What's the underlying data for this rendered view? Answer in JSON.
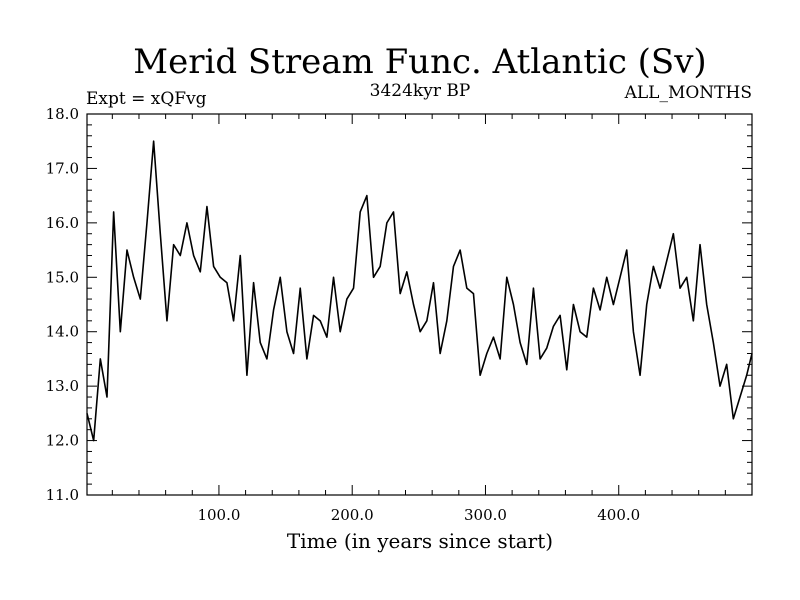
{
  "chart_data": {
    "type": "line",
    "title": "Merid Stream Func. Atlantic (Sv)",
    "subtitle_left": "Expt = xQFvg",
    "subtitle_center": "3424kyr BP",
    "subtitle_right": "ALL_MONTHS",
    "xlabel": "Time (in years since start)",
    "ylabel": "",
    "xlim": [
      1,
      500
    ],
    "ylim": [
      11.0,
      18.0
    ],
    "xticks": [
      100,
      200,
      300,
      400
    ],
    "xtick_labels": [
      "100.0",
      "200.0",
      "300.0",
      "400.0"
    ],
    "yticks": [
      11,
      12,
      13,
      14,
      15,
      16,
      17,
      18
    ],
    "ytick_labels": [
      "11.0",
      "12.0",
      "13.0",
      "14.0",
      "15.0",
      "16.0",
      "17.0",
      "18.0"
    ],
    "series": [
      {
        "name": "Merid Stream Func. Atlantic",
        "x": [
          1,
          6,
          11,
          16,
          21,
          26,
          31,
          36,
          41,
          46,
          51,
          56,
          61,
          66,
          71,
          76,
          81,
          86,
          91,
          96,
          101,
          106,
          111,
          116,
          121,
          126,
          131,
          136,
          141,
          146,
          151,
          156,
          161,
          166,
          171,
          176,
          181,
          186,
          191,
          196,
          201,
          206,
          211,
          216,
          221,
          226,
          231,
          236,
          241,
          246,
          251,
          256,
          261,
          266,
          271,
          276,
          281,
          286,
          291,
          296,
          301,
          306,
          311,
          316,
          321,
          326,
          331,
          336,
          341,
          346,
          351,
          356,
          361,
          366,
          371,
          376,
          381,
          386,
          391,
          396,
          401,
          406,
          411,
          416,
          421,
          426,
          431,
          436,
          441,
          446,
          451,
          456,
          461,
          466,
          471,
          476,
          481,
          486,
          491,
          496,
          500
        ],
        "values": [
          12.5,
          12.0,
          13.5,
          12.8,
          16.2,
          14.0,
          15.5,
          15.0,
          14.6,
          16.0,
          17.5,
          15.8,
          14.2,
          15.6,
          15.4,
          16.0,
          15.4,
          15.1,
          16.3,
          15.2,
          15.0,
          14.9,
          14.2,
          15.4,
          13.2,
          14.9,
          13.8,
          13.5,
          14.4,
          15.0,
          14.0,
          13.6,
          14.8,
          13.5,
          14.3,
          14.2,
          13.9,
          15.0,
          14.0,
          14.6,
          14.8,
          16.2,
          16.5,
          15.0,
          15.2,
          16.0,
          16.2,
          14.7,
          15.1,
          14.5,
          14.0,
          14.2,
          14.9,
          13.6,
          14.2,
          15.2,
          15.5,
          14.8,
          14.7,
          13.2,
          13.6,
          13.9,
          13.5,
          15.0,
          14.5,
          13.8,
          13.4,
          14.8,
          13.5,
          13.7,
          14.1,
          14.3,
          13.3,
          14.5,
          14.0,
          13.9,
          14.8,
          14.4,
          15.0,
          14.5,
          15.0,
          15.5,
          14.0,
          13.2,
          14.5,
          15.2,
          14.8,
          15.3,
          15.8,
          14.8,
          15.0,
          14.2,
          15.6,
          14.5,
          13.8,
          13.0,
          13.4,
          12.4,
          12.8,
          13.2,
          13.6
        ]
      }
    ]
  }
}
